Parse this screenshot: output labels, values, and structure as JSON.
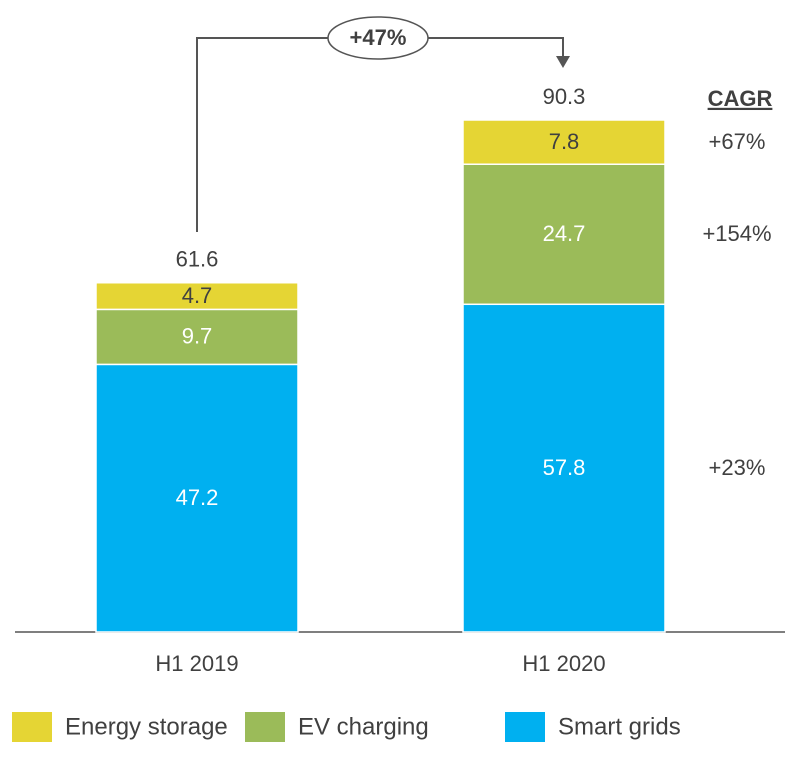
{
  "chart_data": {
    "type": "stacked-bar",
    "categories": [
      "H1 2019",
      "H1 2020"
    ],
    "totals": [
      61.6,
      90.3
    ],
    "growth_label": "+47%",
    "cagr_title": "CAGR",
    "series": [
      {
        "name": "Energy storage",
        "color": "#e5d534",
        "values": [
          4.7,
          7.8
        ],
        "cagr": "+67%"
      },
      {
        "name": "EV charging",
        "color": "#9bbb59",
        "values": [
          9.7,
          24.7
        ],
        "cagr": "+154%"
      },
      {
        "name": "Smart grids",
        "color": "#00b0f0",
        "values": [
          47.2,
          57.8
        ],
        "cagr": "+23%"
      }
    ]
  }
}
